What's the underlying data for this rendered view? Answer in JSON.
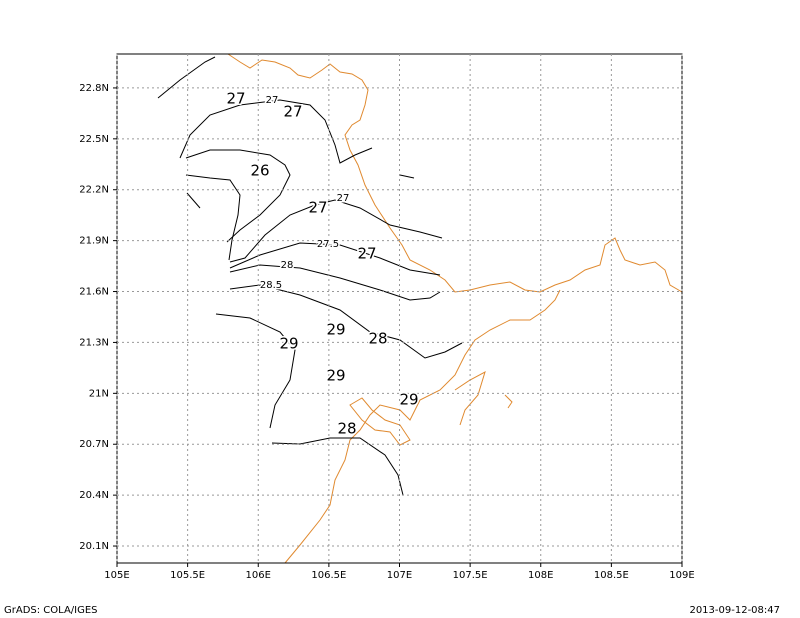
{
  "map": {
    "xticks": [
      {
        "value": 105,
        "label": "105E"
      },
      {
        "value": 105.5,
        "label": "105.5E"
      },
      {
        "value": 106,
        "label": "106E"
      },
      {
        "value": 106.5,
        "label": "106.5E"
      },
      {
        "value": 107,
        "label": "107E"
      },
      {
        "value": 107.5,
        "label": "107.5E"
      },
      {
        "value": 108,
        "label": "108E"
      },
      {
        "value": 108.5,
        "label": "108.5E"
      },
      {
        "value": 109,
        "label": "109E"
      }
    ],
    "yticks": [
      {
        "value": 20.1,
        "label": "20.1N"
      },
      {
        "value": 20.4,
        "label": "20.4N"
      },
      {
        "value": 20.7,
        "label": "20.7N"
      },
      {
        "value": 21,
        "label": "21N"
      },
      {
        "value": 21.3,
        "label": "21.3N"
      },
      {
        "value": 21.6,
        "label": "21.6N"
      },
      {
        "value": 21.9,
        "label": "21.9N"
      },
      {
        "value": 22.2,
        "label": "22.2N"
      },
      {
        "value": 22.5,
        "label": "22.5N"
      },
      {
        "value": 22.8,
        "label": "22.8N"
      }
    ],
    "xlim": [
      105,
      109
    ],
    "ylim": [
      20,
      23
    ],
    "contour_labels": [
      "27",
      "27",
      "27",
      "26",
      "27",
      "27",
      "27.5",
      "27",
      "28",
      "28.5",
      "29",
      "28",
      "29",
      "29",
      "29",
      "28"
    ],
    "footer_left": "GrADS: COLA/IGES",
    "footer_right": "2013-09-12-08:47"
  }
}
